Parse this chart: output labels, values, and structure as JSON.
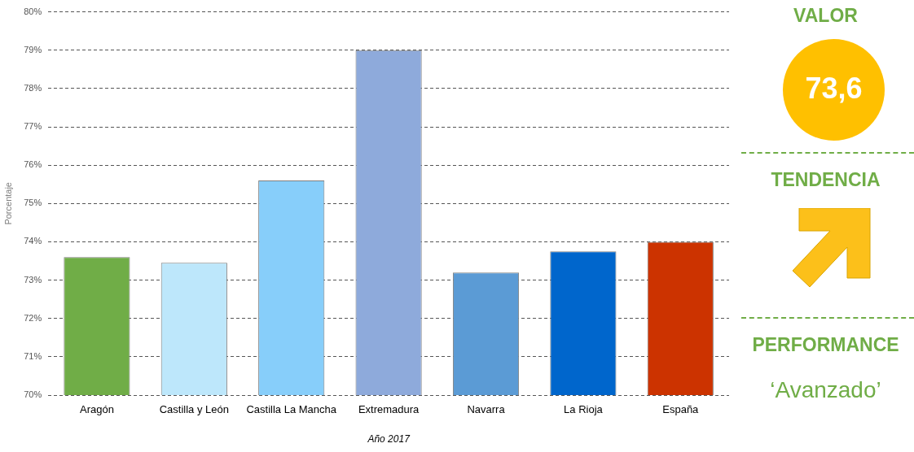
{
  "chart_data": [
    {
      "type": "bar",
      "xlabel": "Año 2017",
      "ylabel": "Porcentaje",
      "categories": [
        "Aragón",
        "Castilla y León",
        "Castilla La Mancha",
        "Extremadura",
        "Navarra",
        "La Rioja",
        "España"
      ],
      "values": [
        73.6,
        73.45,
        75.6,
        79.0,
        73.2,
        73.75,
        74.0
      ],
      "colors": [
        "#70ad47",
        "#bde7fb",
        "#87cefa",
        "#8eaadb",
        "#5b9bd5",
        "#0066cc",
        "#cc3300"
      ],
      "ylim": [
        70,
        80
      ],
      "yticks": [
        {
          "value": 70,
          "label": "70%"
        },
        {
          "value": 71,
          "label": "71%"
        },
        {
          "value": 72,
          "label": "72%"
        },
        {
          "value": 73,
          "label": "73%"
        },
        {
          "value": 74,
          "label": "74%"
        },
        {
          "value": 75,
          "label": "75%"
        },
        {
          "value": 76,
          "label": "76%"
        },
        {
          "value": 77,
          "label": "77%"
        },
        {
          "value": 78,
          "label": "78%"
        },
        {
          "value": 79,
          "label": "79%"
        },
        {
          "value": 80,
          "label": "80%"
        }
      ],
      "grid": "y",
      "line_style": "dashed",
      "legend": false
    },
    {
      "type": "other",
      "annotations": [
        "VALOR",
        "73,6",
        "TENDENCIA",
        "PERFORMANCE",
        "‘Avanzado’"
      ]
    }
  ]
}
